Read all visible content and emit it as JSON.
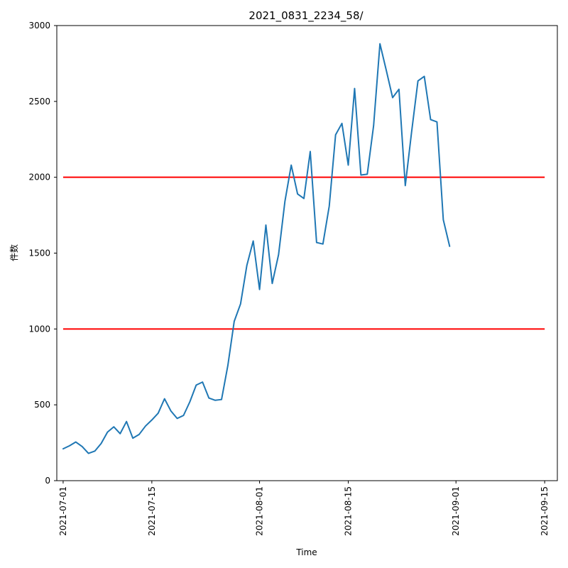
{
  "chart_data": {
    "type": "line",
    "title": "2021_0831_2234_58/",
    "xlabel": "Time",
    "ylabel": "件数",
    "x_range": [
      "2021-06-30",
      "2021-09-17"
    ],
    "ylim": [
      0,
      3000
    ],
    "y_ticks": [
      0,
      500,
      1000,
      1500,
      2000,
      2500,
      3000
    ],
    "x_ticks": [
      "2021-07-01",
      "2021-07-15",
      "2021-08-01",
      "2021-08-15",
      "2021-09-01",
      "2021-09-15"
    ],
    "grid": false,
    "series": [
      {
        "color": "#1f77b4",
        "points": [
          [
            "2021-07-01",
            210
          ],
          [
            "2021-07-02",
            230
          ],
          [
            "2021-07-03",
            255
          ],
          [
            "2021-07-04",
            225
          ],
          [
            "2021-07-05",
            180
          ],
          [
            "2021-07-06",
            195
          ],
          [
            "2021-07-07",
            245
          ],
          [
            "2021-07-08",
            320
          ],
          [
            "2021-07-09",
            355
          ],
          [
            "2021-07-10",
            310
          ],
          [
            "2021-07-11",
            390
          ],
          [
            "2021-07-12",
            280
          ],
          [
            "2021-07-13",
            305
          ],
          [
            "2021-07-14",
            360
          ],
          [
            "2021-07-15",
            400
          ],
          [
            "2021-07-16",
            445
          ],
          [
            "2021-07-17",
            540
          ],
          [
            "2021-07-18",
            460
          ],
          [
            "2021-07-19",
            410
          ],
          [
            "2021-07-20",
            430
          ],
          [
            "2021-07-21",
            520
          ],
          [
            "2021-07-22",
            630
          ],
          [
            "2021-07-23",
            650
          ],
          [
            "2021-07-24",
            545
          ],
          [
            "2021-07-25",
            530
          ],
          [
            "2021-07-26",
            535
          ],
          [
            "2021-07-27",
            760
          ],
          [
            "2021-07-28",
            1050
          ],
          [
            "2021-07-29",
            1165
          ],
          [
            "2021-07-30",
            1420
          ],
          [
            "2021-07-31",
            1580
          ],
          [
            "2021-08-01",
            1260
          ],
          [
            "2021-08-02",
            1685
          ],
          [
            "2021-08-03",
            1300
          ],
          [
            "2021-08-04",
            1490
          ],
          [
            "2021-08-05",
            1840
          ],
          [
            "2021-08-06",
            2080
          ],
          [
            "2021-08-07",
            1890
          ],
          [
            "2021-08-08",
            1860
          ],
          [
            "2021-08-09",
            2170
          ],
          [
            "2021-08-10",
            1570
          ],
          [
            "2021-08-11",
            1560
          ],
          [
            "2021-08-12",
            1810
          ],
          [
            "2021-08-13",
            2280
          ],
          [
            "2021-08-14",
            2355
          ],
          [
            "2021-08-15",
            2080
          ],
          [
            "2021-08-16",
            2585
          ],
          [
            "2021-08-17",
            2015
          ],
          [
            "2021-08-18",
            2020
          ],
          [
            "2021-08-19",
            2340
          ],
          [
            "2021-08-20",
            2880
          ],
          [
            "2021-08-21",
            2705
          ],
          [
            "2021-08-22",
            2525
          ],
          [
            "2021-08-23",
            2580
          ],
          [
            "2021-08-24",
            1945
          ],
          [
            "2021-08-25",
            2300
          ],
          [
            "2021-08-26",
            2635
          ],
          [
            "2021-08-27",
            2665
          ],
          [
            "2021-08-28",
            2380
          ],
          [
            "2021-08-29",
            2365
          ],
          [
            "2021-08-30",
            1720
          ],
          [
            "2021-08-31",
            1545
          ]
        ]
      }
    ],
    "reference_lines": [
      {
        "y": 2000,
        "x_start": "2021-07-01",
        "x_end": "2021-09-15",
        "color": "#ff0000"
      },
      {
        "y": 1000,
        "x_start": "2021-07-01",
        "x_end": "2021-09-15",
        "color": "#ff0000"
      }
    ]
  }
}
